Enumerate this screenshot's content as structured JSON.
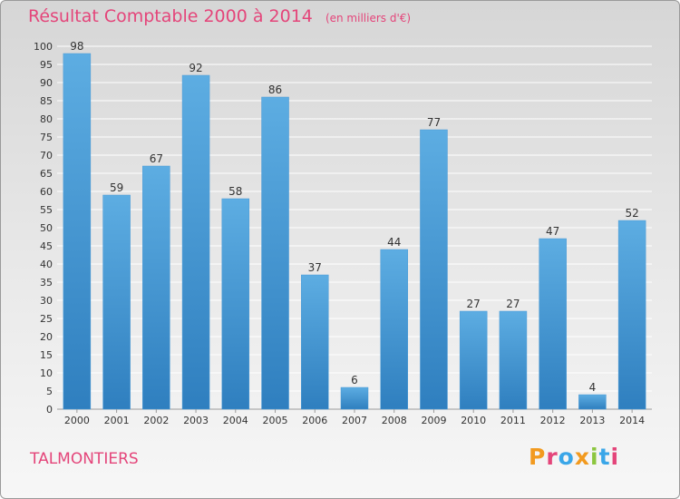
{
  "header": {
    "title": "Résultat Comptable 2000 à 2014",
    "subtitle": "(en milliers d'€)"
  },
  "footer": {
    "place": "TALMONTIERS"
  },
  "logo": {
    "letters": [
      "P",
      "r",
      "o",
      "x",
      "i",
      "t",
      "i"
    ],
    "colors": [
      "#f29a1f",
      "#e4457a",
      "#3aa6e8",
      "#f29a1f",
      "#8cc63f",
      "#3aa6e8",
      "#e4457a"
    ]
  },
  "chart_data": {
    "type": "bar",
    "title": "Résultat Comptable 2000 à 2014",
    "subtitle": "(en milliers d'€)",
    "categories": [
      "2000",
      "2001",
      "2002",
      "2003",
      "2004",
      "2005",
      "2006",
      "2007",
      "2008",
      "2009",
      "2010",
      "2011",
      "2012",
      "2013",
      "2014"
    ],
    "values": [
      98,
      59,
      67,
      92,
      58,
      86,
      37,
      6,
      44,
      77,
      27,
      27,
      47,
      4,
      52
    ],
    "ylim": [
      0,
      100
    ],
    "yticks": [
      0,
      5,
      10,
      15,
      20,
      25,
      30,
      35,
      40,
      45,
      50,
      55,
      60,
      65,
      70,
      75,
      80,
      85,
      90,
      95,
      100
    ],
    "grid": true,
    "colors": {
      "bar_light": "#5dade2",
      "bar_dark": "#2f7fbf",
      "grid": "#ffffff"
    }
  }
}
